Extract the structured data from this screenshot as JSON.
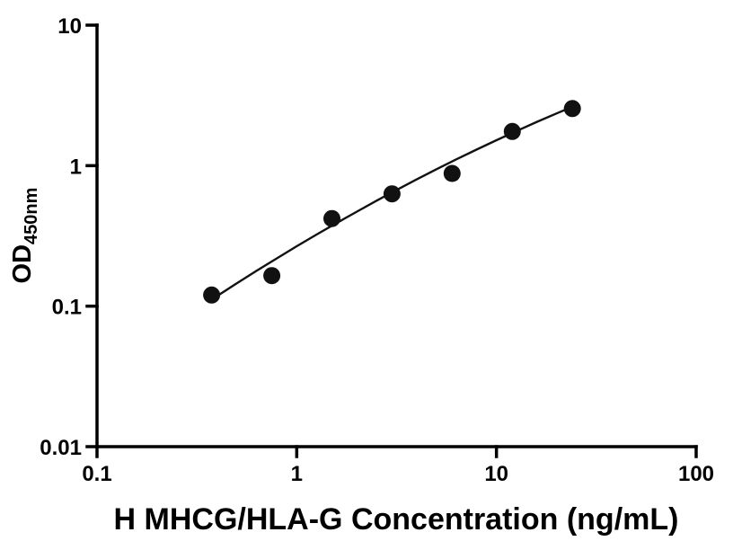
{
  "figure": {
    "background": "#ffffff",
    "ink_color": "#000000"
  },
  "chart_data": {
    "type": "scatter",
    "title": "",
    "xlabel": "H MHCG/HLA-G Concentration (ng/mL)",
    "ylabel_main": "OD",
    "ylabel_sub": "450nm",
    "x_scale": "log",
    "y_scale": "log",
    "xlim": [
      0.1,
      100
    ],
    "ylim": [
      0.01,
      10
    ],
    "x_ticks": [
      0.1,
      1,
      10,
      100
    ],
    "x_tick_labels": [
      "0.1",
      "1",
      "10",
      "100"
    ],
    "y_ticks": [
      0.01,
      0.1,
      1,
      10
    ],
    "y_tick_labels": [
      "0.01",
      "0.1",
      "1",
      "10"
    ],
    "grid": false,
    "legend": "none",
    "series": [
      {
        "name": "standard-curve-points",
        "marker": "circle",
        "color": "#111111",
        "x": [
          0.375,
          0.75,
          1.5,
          3,
          6,
          12,
          24
        ],
        "y": [
          0.12,
          0.165,
          0.42,
          0.63,
          0.88,
          1.75,
          2.55
        ]
      }
    ],
    "fit_curve": {
      "name": "4pl-fit",
      "color": "#111111",
      "x": [
        0.377,
        0.5,
        0.631,
        0.8,
        1.0,
        1.26,
        1.585,
        2.0,
        2.51,
        3.16,
        3.98,
        5.01,
        6.31,
        7.94,
        10.0,
        12.6,
        15.85,
        19.95,
        23.99
      ],
      "y": [
        0.112,
        0.145,
        0.179,
        0.22,
        0.267,
        0.324,
        0.391,
        0.471,
        0.563,
        0.671,
        0.797,
        0.943,
        1.11,
        1.301,
        1.518,
        1.764,
        2.041,
        2.352,
        2.625
      ]
    }
  }
}
